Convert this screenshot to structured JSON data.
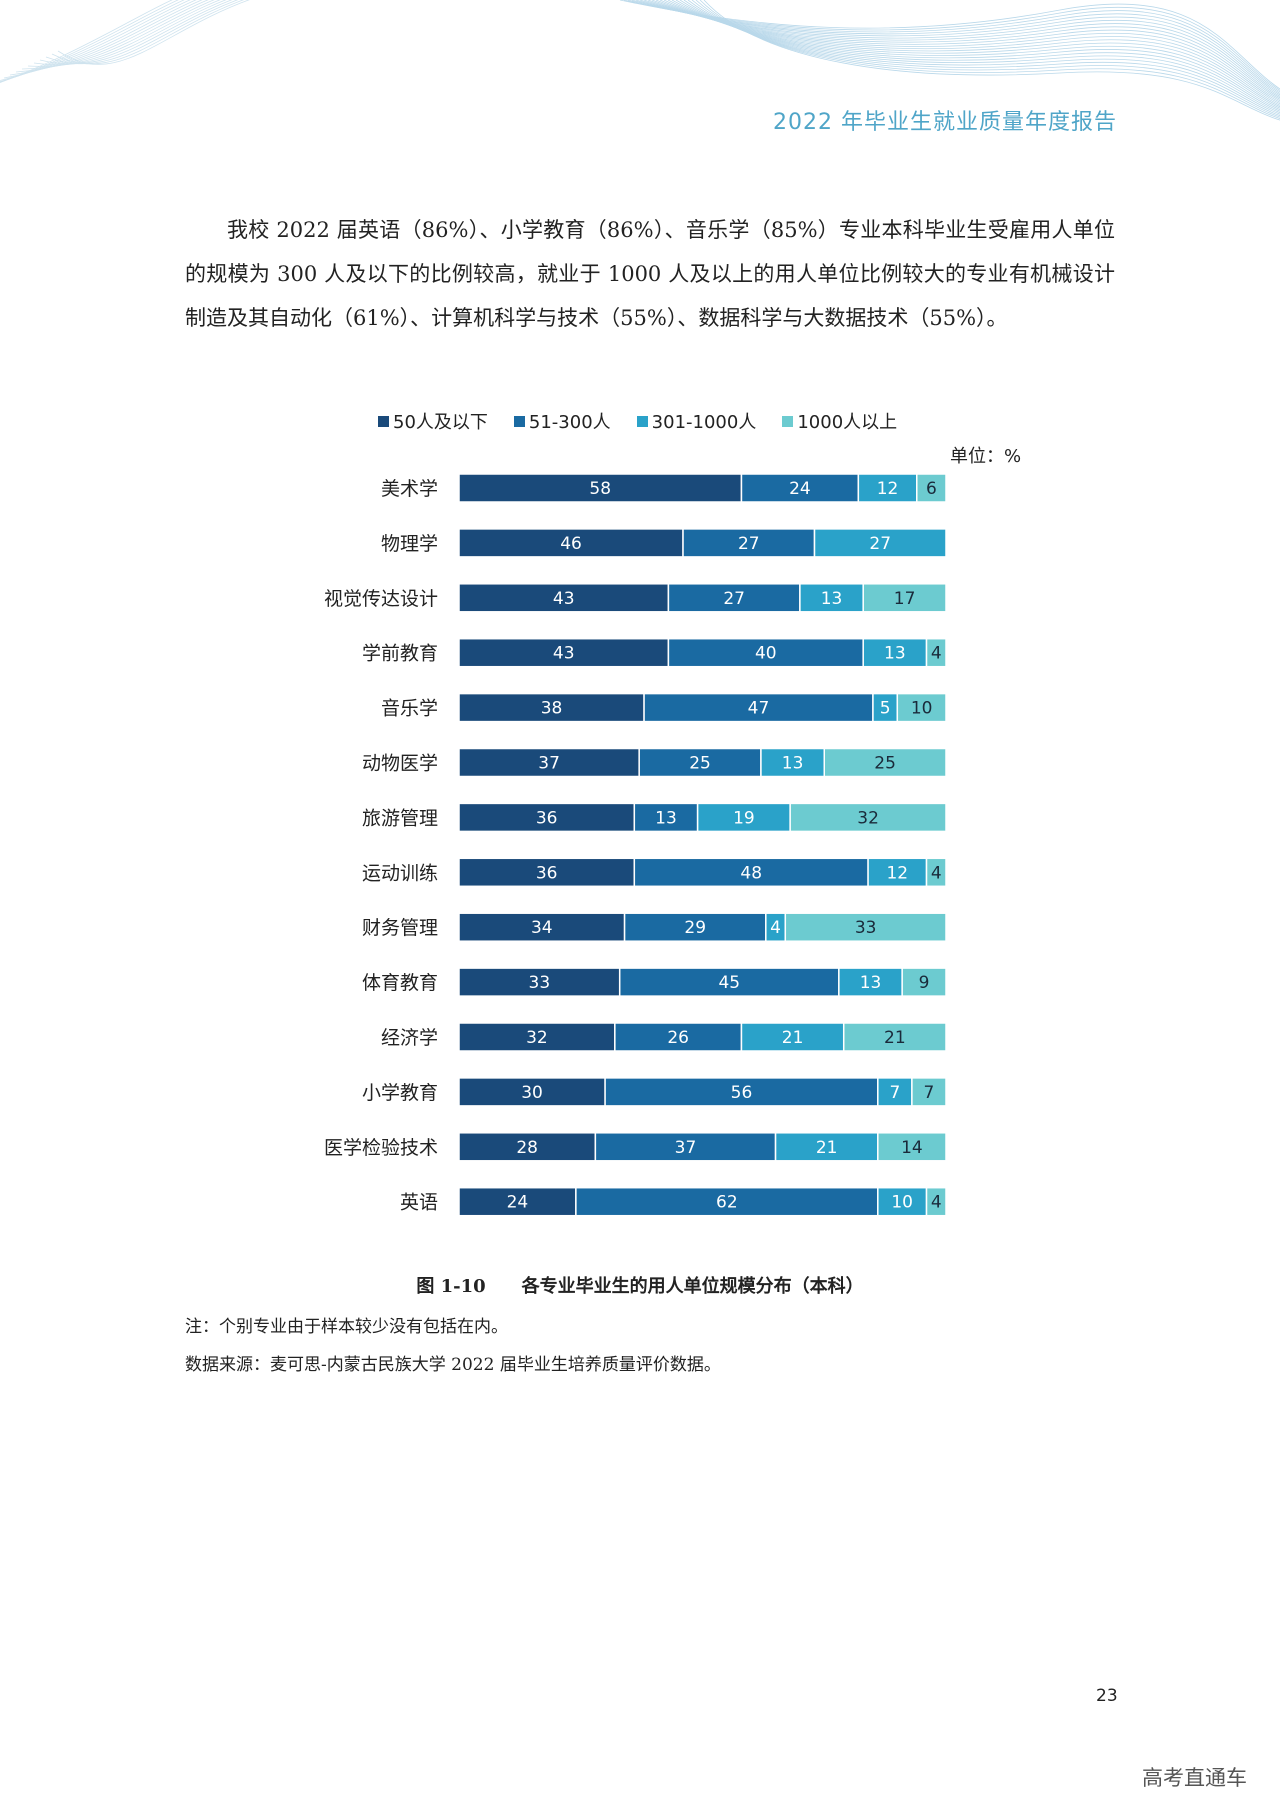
{
  "header": {
    "title": "2022 年毕业生就业质量年度报告"
  },
  "paragraph": "我校 2022 届英语（86%）、小学教育（86%）、音乐学（85%）专业本科毕业生受雇用人单位的规模为 300 人及以下的比例较高，就业于 1000 人及以上的用人单位比例较大的专业有机械设计制造及其自动化（61%）、计算机科学与技术（55%）、数据科学与大数据技术（55%）。",
  "colors": {
    "series": [
      "#1a4a7a",
      "#1a6aa2",
      "#2aa2c9",
      "#6ccbd0"
    ],
    "header": "#4fa5c8"
  },
  "chart_data": {
    "type": "bar",
    "orientation": "horizontal",
    "stacked": true,
    "unit_label": "单位：%",
    "categories": [
      "美术学",
      "物理学",
      "视觉传达设计",
      "学前教育",
      "音乐学",
      "动物医学",
      "旅游管理",
      "运动训练",
      "财务管理",
      "体育教育",
      "经济学",
      "小学教育",
      "医学检验技术",
      "英语"
    ],
    "series": [
      {
        "name": "50人及以下",
        "values": [
          58,
          46,
          43,
          43,
          38,
          37,
          36,
          36,
          34,
          33,
          32,
          30,
          28,
          24
        ]
      },
      {
        "name": "51-300人",
        "values": [
          24,
          27,
          27,
          40,
          47,
          25,
          13,
          48,
          29,
          45,
          26,
          56,
          37,
          62
        ]
      },
      {
        "name": "301-1000人",
        "values": [
          12,
          27,
          13,
          13,
          5,
          13,
          19,
          12,
          4,
          13,
          21,
          7,
          21,
          10
        ]
      },
      {
        "name": "1000人以上",
        "values": [
          6,
          0,
          17,
          4,
          10,
          25,
          32,
          4,
          33,
          9,
          21,
          7,
          14,
          4
        ]
      }
    ],
    "xlim": [
      0,
      100
    ],
    "legend": "top",
    "grid": false
  },
  "caption": "图 1-10　　各专业毕业生的用人单位规模分布（本科）",
  "notes": {
    "note": "注：个别专业由于样本较少没有包括在内。",
    "source": "数据来源：麦可思-内蒙古民族大学 2022 届毕业生培养质量评价数据。"
  },
  "page_number": "23",
  "watermark": "高考直通车"
}
